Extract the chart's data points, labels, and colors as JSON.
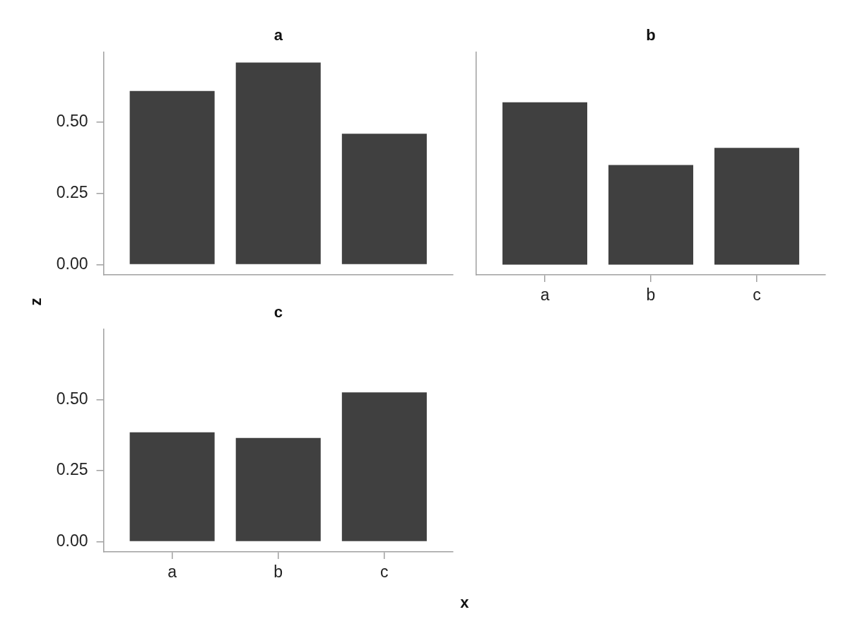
{
  "chart_data": [
    {
      "type": "bar",
      "title": "a",
      "categories": [
        null,
        null,
        null
      ],
      "values": [
        0.61,
        0.71,
        0.46
      ],
      "color": "#404040",
      "ylim": [
        -0.036,
        0.747
      ],
      "yticks": [
        {
          "value": 0,
          "label": "0.00"
        },
        {
          "value": 0.25,
          "label": "0.25"
        },
        {
          "value": 0.5,
          "label": "0.50"
        }
      ],
      "tick_labels": "y"
    },
    {
      "type": "bar",
      "title": "b",
      "categories": [
        "a",
        "b",
        "c"
      ],
      "values": [
        0.57,
        0.35,
        0.41
      ],
      "color": "#404040",
      "ylim": [
        -0.036,
        0.747
      ],
      "tick_labels": "x"
    },
    {
      "type": "bar",
      "title": "c",
      "categories": [
        "a",
        "b",
        "c"
      ],
      "values": [
        0.385,
        0.365,
        0.525
      ],
      "color": "#404040",
      "ylim": [
        -0.036,
        0.747
      ],
      "yticks": [
        {
          "value": 0,
          "label": "0.00"
        },
        {
          "value": 0.25,
          "label": "0.25"
        },
        {
          "value": 0.5,
          "label": "0.50"
        }
      ],
      "xlabel": "x",
      "ylabel": "z"
    }
  ]
}
